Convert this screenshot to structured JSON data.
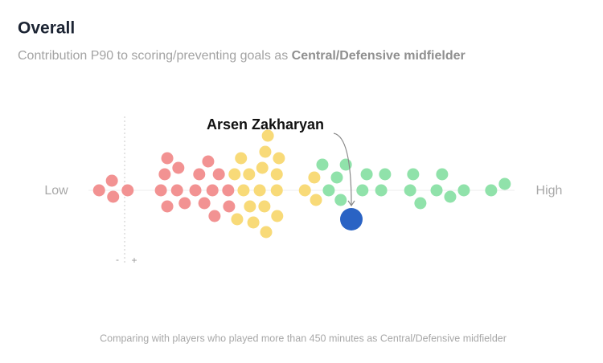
{
  "chart_data": {
    "type": "beeswarm",
    "title": "Overall",
    "subtitle": "Contribution P90 to scoring/preventing goals as",
    "subtitle_emphasis": "Central/Defensive midfielder",
    "footnote": "Comparing with players who played more than 450 minutes as Central/Defensive midfielder",
    "low_label": "Low",
    "high_label": "High",
    "xlim": [
      0,
      100
    ],
    "zero_marker": {
      "value": 8.5,
      "minus_label": "-",
      "plus_label": "+"
    },
    "groups": [
      {
        "color": "#f29292",
        "values": [
          2.5,
          5.8,
          9.2,
          5.5,
          17,
          17.9,
          18.5,
          18.5,
          20.8,
          21.1,
          22.6,
          25.1,
          26,
          27.2,
          28.1,
          29.1,
          29.6,
          30.6,
          32.8,
          33
        ]
      },
      {
        "color": "#f8da78",
        "values": [
          34.3,
          34.9,
          35.8,
          36.4,
          37.7,
          37.9,
          38.7,
          40.2,
          40.8,
          41.3,
          41.5,
          41.7,
          42.1,
          44.2,
          44.2,
          44.3,
          44.7,
          50.8,
          53,
          53.4
        ]
      },
      {
        "color": "#90e2aa",
        "values": [
          54.9,
          56.4,
          58.3,
          59.2,
          60.4,
          64.3,
          65.3,
          68.7,
          69.6,
          75.5,
          76.2,
          77.9,
          81.7,
          83,
          84.9,
          88.1,
          94.5,
          97.7
        ]
      }
    ],
    "highlight": {
      "label": "Arsen Zakharyan",
      "value": 61.7,
      "color": "#2a63c4"
    }
  }
}
